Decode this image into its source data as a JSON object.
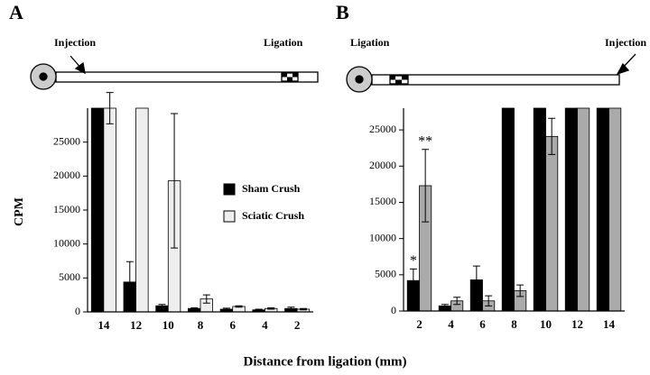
{
  "figure": {
    "xlabel": "Distance from ligation (mm)"
  },
  "chart_data": [
    {
      "type": "bar",
      "panel": "A",
      "ylabel": "CPM",
      "diagram": {
        "left_label": "Injection",
        "right_label": "Ligation"
      },
      "categories": [
        "14",
        "12",
        "10",
        "8",
        "6",
        "4",
        "2"
      ],
      "series": [
        {
          "name": "Sham Crush",
          "color": "#000000",
          "values": [
            30000,
            4400,
            900,
            500,
            400,
            300,
            500
          ],
          "errors": [
            null,
            3000,
            200,
            100,
            150,
            100,
            200
          ]
        },
        {
          "name": "Sciatic Crush",
          "color": "#eeeeee",
          "values": [
            30000,
            30000,
            19300,
            1900,
            800,
            500,
            400
          ],
          "errors": [
            2300,
            null,
            9900,
            600,
            100,
            100,
            100
          ]
        }
      ],
      "ylim": [
        0,
        30000
      ],
      "yticks": [
        0,
        5000,
        10000,
        15000,
        20000,
        25000
      ],
      "legend": true
    },
    {
      "type": "bar",
      "panel": "B",
      "diagram": {
        "left_label": "Ligation",
        "right_label": "Injection"
      },
      "categories": [
        "2",
        "4",
        "6",
        "8",
        "10",
        "12",
        "14"
      ],
      "series": [
        {
          "color": "#000000",
          "values": [
            4200,
            700,
            4300,
            28000,
            28000,
            28000,
            28000
          ],
          "errors": [
            1600,
            200,
            1900,
            null,
            null,
            null,
            null
          ],
          "value_annotations": [
            "*",
            null,
            null,
            null,
            null,
            null,
            null
          ]
        },
        {
          "color": "#aaaaaa",
          "values": [
            17300,
            1400,
            1400,
            2800,
            24100,
            28000,
            28000
          ],
          "errors": [
            5000,
            500,
            700,
            800,
            2500,
            null,
            null
          ],
          "value_annotations": [
            "**",
            null,
            null,
            null,
            null,
            null,
            null
          ]
        }
      ],
      "ylim": [
        0,
        28000
      ],
      "yticks": [
        0,
        5000,
        10000,
        15000,
        20000,
        25000
      ],
      "legend": false
    }
  ]
}
